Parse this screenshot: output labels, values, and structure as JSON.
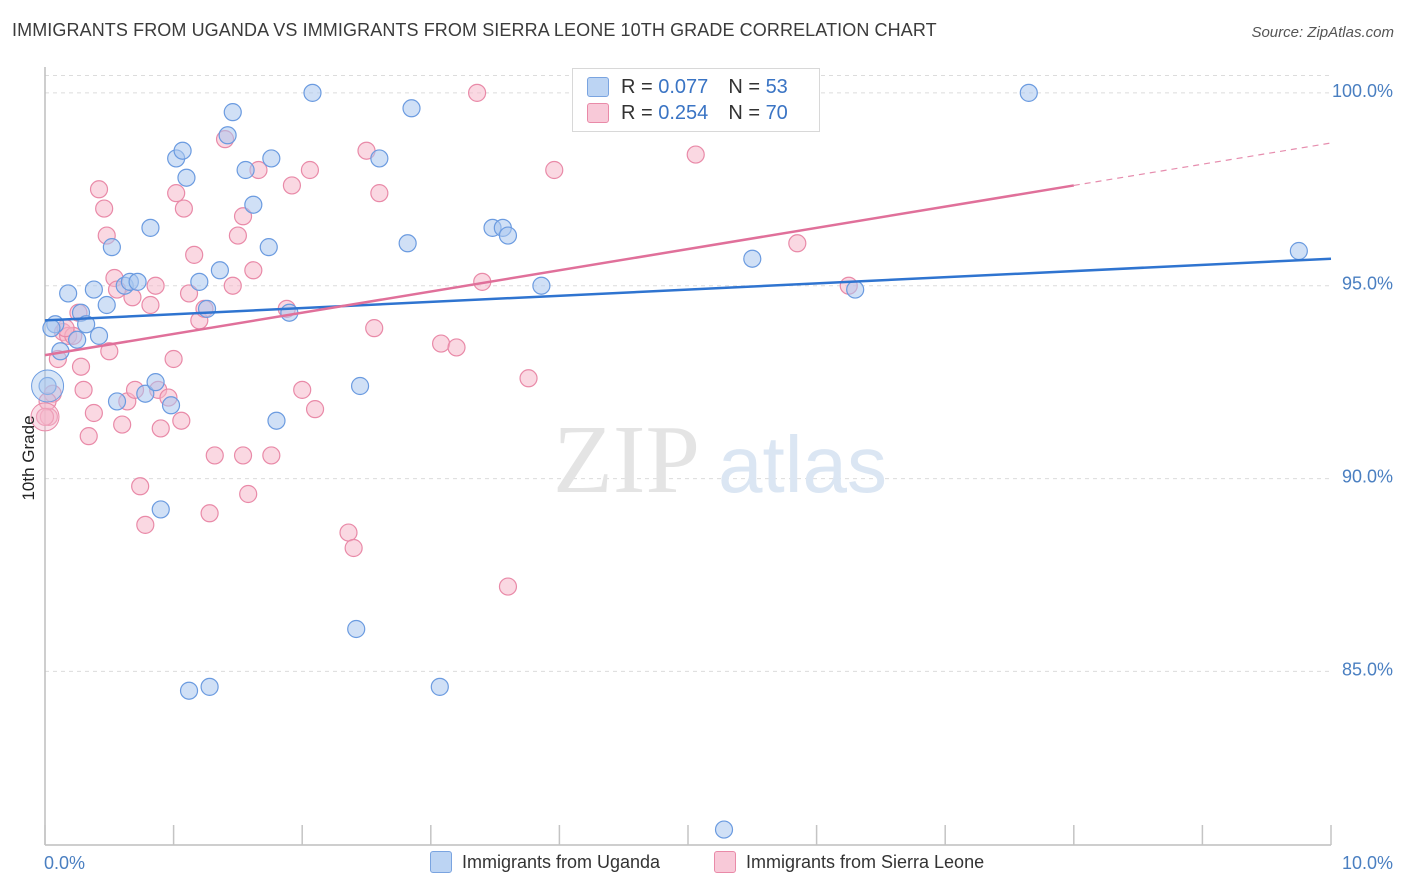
{
  "title": "IMMIGRANTS FROM UGANDA VS IMMIGRANTS FROM SIERRA LEONE 10TH GRADE CORRELATION CHART",
  "source": "Source: ZipAtlas.com",
  "watermark": {
    "zip": "ZIP",
    "atlas": "atlas"
  },
  "legend_top": {
    "rows": [
      {
        "r_label": "R =",
        "r_value": "0.077",
        "n_label": "N =",
        "n_value": "53"
      },
      {
        "r_label": "R =",
        "r_value": "0.254",
        "n_label": "N =",
        "n_value": "70"
      }
    ]
  },
  "colors": {
    "blue_fill": "#a9c7ee",
    "blue_stroke": "#6b9be0",
    "blue_line": "#2f74d0",
    "pink_fill": "#f5b8cb",
    "pink_stroke": "#e98aa8",
    "pink_line": "#e0709a",
    "tick_label": "#4a7fc1",
    "grid": "#dcdcdc"
  },
  "chart_data": {
    "type": "scatter",
    "title": "IMMIGRANTS FROM UGANDA VS IMMIGRANTS FROM SIERRA LEONE 10TH GRADE CORRELATION CHART",
    "xlabel": "",
    "ylabel": "10th Grade",
    "xlim": [
      0,
      10
    ],
    "ylim": [
      80.5,
      100.8
    ],
    "x_tick_labels": [
      "0.0%",
      "10.0%"
    ],
    "y_ticks": [
      85,
      90,
      95,
      100
    ],
    "y_tick_labels": [
      "85.0%",
      "90.0%",
      "95.0%",
      "100.0%"
    ],
    "grid": true,
    "legend_position": "bottom",
    "series": [
      {
        "name": "Immigrants from Uganda",
        "color": "#a9c7ee",
        "stats": {
          "R": 0.077,
          "N": 53
        },
        "trend": {
          "x0": 0,
          "y0": 94.1,
          "x1": 10,
          "y1": 95.7,
          "dashed_from": null
        },
        "points": [
          {
            "x": 0.08,
            "y": 94.0
          },
          {
            "x": 0.12,
            "y": 93.3
          },
          {
            "x": 0.18,
            "y": 94.8
          },
          {
            "x": 0.25,
            "y": 93.6
          },
          {
            "x": 0.28,
            "y": 94.3
          },
          {
            "x": 0.32,
            "y": 94.0
          },
          {
            "x": 0.38,
            "y": 94.9
          },
          {
            "x": 0.42,
            "y": 93.7
          },
          {
            "x": 0.48,
            "y": 94.5
          },
          {
            "x": 0.52,
            "y": 96.0
          },
          {
            "x": 0.56,
            "y": 92.0
          },
          {
            "x": 0.62,
            "y": 95.0
          },
          {
            "x": 0.66,
            "y": 95.1
          },
          {
            "x": 0.72,
            "y": 95.1
          },
          {
            "x": 0.78,
            "y": 92.2
          },
          {
            "x": 0.82,
            "y": 96.5
          },
          {
            "x": 0.86,
            "y": 92.5
          },
          {
            "x": 0.9,
            "y": 89.2
          },
          {
            "x": 0.98,
            "y": 91.9
          },
          {
            "x": 1.02,
            "y": 98.3
          },
          {
            "x": 1.07,
            "y": 98.5
          },
          {
            "x": 1.1,
            "y": 97.8
          },
          {
            "x": 1.12,
            "y": 84.5
          },
          {
            "x": 1.2,
            "y": 95.1
          },
          {
            "x": 1.26,
            "y": 94.4
          },
          {
            "x": 1.28,
            "y": 84.6
          },
          {
            "x": 1.36,
            "y": 95.4
          },
          {
            "x": 1.42,
            "y": 98.9
          },
          {
            "x": 1.46,
            "y": 99.5
          },
          {
            "x": 1.56,
            "y": 98.0
          },
          {
            "x": 1.62,
            "y": 97.1
          },
          {
            "x": 1.74,
            "y": 96.0
          },
          {
            "x": 1.76,
            "y": 98.3
          },
          {
            "x": 1.8,
            "y": 91.5
          },
          {
            "x": 1.9,
            "y": 94.3
          },
          {
            "x": 2.08,
            "y": 100.0
          },
          {
            "x": 2.42,
            "y": 86.1
          },
          {
            "x": 2.45,
            "y": 92.4
          },
          {
            "x": 2.6,
            "y": 98.3
          },
          {
            "x": 2.82,
            "y": 96.1
          },
          {
            "x": 2.85,
            "y": 99.6
          },
          {
            "x": 3.07,
            "y": 84.6
          },
          {
            "x": 3.48,
            "y": 96.5
          },
          {
            "x": 3.56,
            "y": 96.5
          },
          {
            "x": 3.6,
            "y": 96.3
          },
          {
            "x": 3.86,
            "y": 95.0
          },
          {
            "x": 5.28,
            "y": 80.9
          },
          {
            "x": 5.5,
            "y": 95.7
          },
          {
            "x": 6.3,
            "y": 94.9
          },
          {
            "x": 7.65,
            "y": 100.0
          },
          {
            "x": 9.75,
            "y": 95.9
          },
          {
            "x": 0.02,
            "y": 92.4
          },
          {
            "x": 0.05,
            "y": 93.9
          }
        ]
      },
      {
        "name": "Immigrants from Sierra Leone",
        "color": "#f5b8cb",
        "stats": {
          "R": 0.254,
          "N": 70
        },
        "trend": {
          "x0": 0,
          "y0": 93.2,
          "x1": 10,
          "y1": 98.7,
          "dashed_from": 8.0
        },
        "points": [
          {
            "x": 0.03,
            "y": 91.6
          },
          {
            "x": 0.06,
            "y": 92.2
          },
          {
            "x": 0.1,
            "y": 93.1
          },
          {
            "x": 0.14,
            "y": 93.8
          },
          {
            "x": 0.18,
            "y": 93.7
          },
          {
            "x": 0.22,
            "y": 93.7
          },
          {
            "x": 0.26,
            "y": 94.3
          },
          {
            "x": 0.28,
            "y": 92.9
          },
          {
            "x": 0.3,
            "y": 92.3
          },
          {
            "x": 0.34,
            "y": 91.1
          },
          {
            "x": 0.38,
            "y": 91.7
          },
          {
            "x": 0.42,
            "y": 97.5
          },
          {
            "x": 0.46,
            "y": 97.0
          },
          {
            "x": 0.48,
            "y": 96.3
          },
          {
            "x": 0.5,
            "y": 93.3
          },
          {
            "x": 0.54,
            "y": 95.2
          },
          {
            "x": 0.56,
            "y": 94.9
          },
          {
            "x": 0.6,
            "y": 91.4
          },
          {
            "x": 0.64,
            "y": 92.0
          },
          {
            "x": 0.68,
            "y": 94.7
          },
          {
            "x": 0.7,
            "y": 92.3
          },
          {
            "x": 0.74,
            "y": 89.8
          },
          {
            "x": 0.78,
            "y": 88.8
          },
          {
            "x": 0.82,
            "y": 94.5
          },
          {
            "x": 0.86,
            "y": 95.0
          },
          {
            "x": 0.88,
            "y": 92.3
          },
          {
            "x": 0.9,
            "y": 91.3
          },
          {
            "x": 0.96,
            "y": 92.1
          },
          {
            "x": 1.0,
            "y": 93.1
          },
          {
            "x": 1.02,
            "y": 97.4
          },
          {
            "x": 1.06,
            "y": 91.5
          },
          {
            "x": 1.08,
            "y": 97.0
          },
          {
            "x": 1.12,
            "y": 94.8
          },
          {
            "x": 1.16,
            "y": 95.8
          },
          {
            "x": 1.2,
            "y": 94.1
          },
          {
            "x": 1.24,
            "y": 94.4
          },
          {
            "x": 1.28,
            "y": 89.1
          },
          {
            "x": 1.32,
            "y": 90.6
          },
          {
            "x": 1.4,
            "y": 98.8
          },
          {
            "x": 1.46,
            "y": 95.0
          },
          {
            "x": 1.5,
            "y": 96.3
          },
          {
            "x": 1.54,
            "y": 96.8
          },
          {
            "x": 1.54,
            "y": 90.6
          },
          {
            "x": 1.58,
            "y": 89.6
          },
          {
            "x": 1.62,
            "y": 95.4
          },
          {
            "x": 1.66,
            "y": 98.0
          },
          {
            "x": 1.76,
            "y": 90.6
          },
          {
            "x": 1.88,
            "y": 94.4
          },
          {
            "x": 1.92,
            "y": 97.6
          },
          {
            "x": 2.0,
            "y": 92.3
          },
          {
            "x": 2.06,
            "y": 98.0
          },
          {
            "x": 2.1,
            "y": 91.8
          },
          {
            "x": 2.36,
            "y": 88.6
          },
          {
            "x": 2.4,
            "y": 88.2
          },
          {
            "x": 2.5,
            "y": 98.5
          },
          {
            "x": 2.56,
            "y": 93.9
          },
          {
            "x": 2.6,
            "y": 97.4
          },
          {
            "x": 3.08,
            "y": 93.5
          },
          {
            "x": 3.2,
            "y": 93.4
          },
          {
            "x": 3.36,
            "y": 100.0
          },
          {
            "x": 3.4,
            "y": 95.1
          },
          {
            "x": 3.6,
            "y": 87.2
          },
          {
            "x": 3.76,
            "y": 92.6
          },
          {
            "x": 3.96,
            "y": 98.0
          },
          {
            "x": 5.06,
            "y": 98.4
          },
          {
            "x": 5.85,
            "y": 96.1
          },
          {
            "x": 6.25,
            "y": 95.0
          },
          {
            "x": 0.02,
            "y": 92.0
          },
          {
            "x": 0.0,
            "y": 91.6
          },
          {
            "x": 0.16,
            "y": 93.9
          }
        ]
      }
    ]
  },
  "legend_bottom": {
    "items": [
      "Immigrants from Uganda",
      "Immigrants from Sierra Leone"
    ]
  }
}
